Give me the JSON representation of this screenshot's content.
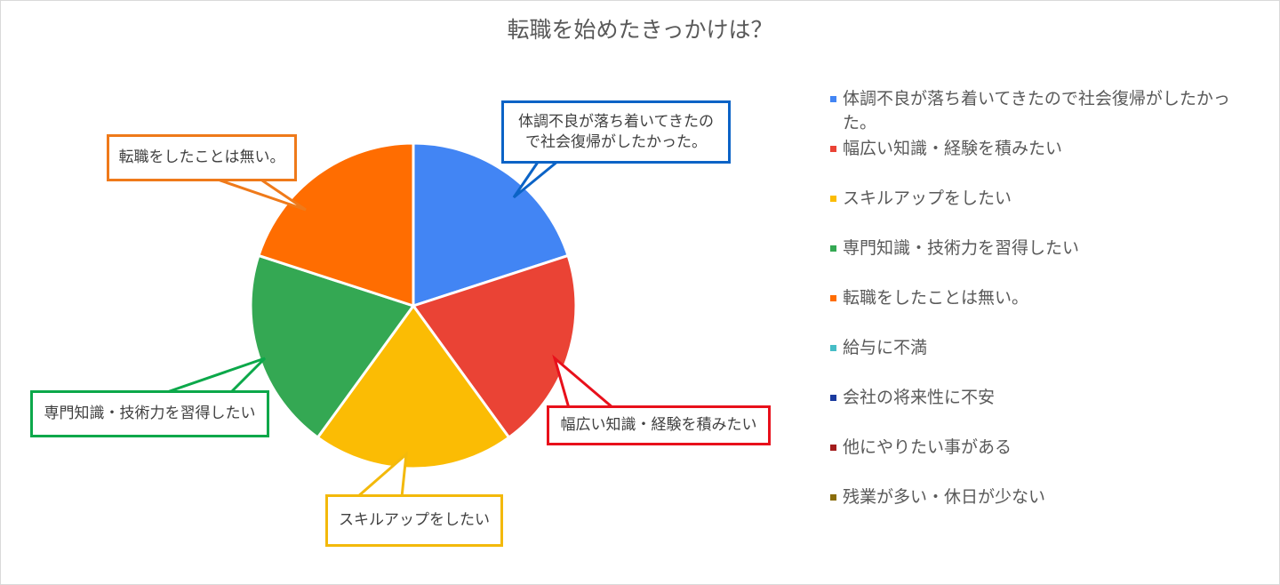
{
  "chart_data": {
    "type": "pie",
    "title": "転職を始めたきっかけは？",
    "categories": [
      "体調不良が落ち着いてきたので社会復帰がしたかった。",
      "幅広い知識・経験を積みたい",
      "スキルアップをしたい",
      "専門知識・技術力を習得したい",
      "転職をしたことは無い。",
      "給与に不満",
      "会社の将来性に不安",
      "他にやりたい事がある",
      "残業が多い・休日が少ない"
    ],
    "values": [
      1,
      1,
      1,
      1,
      1,
      0,
      0,
      0,
      0
    ],
    "colors": [
      "#4285f4",
      "#ea4335",
      "#fbbc04",
      "#34a853",
      "#ff6d01",
      "#46bdc6",
      "#1a3a9e",
      "#a31d1d",
      "#8a6d0b"
    ],
    "legend_position": "right",
    "callouts": [
      {
        "text": "体調不良が落ち着いてきたの\nで社会復帰がしたかった。",
        "border_color": "#0b63c6"
      },
      {
        "text": "幅広い知識・経験を積みたい",
        "border_color": "#e8101b"
      },
      {
        "text": "スキルアップをしたい",
        "border_color": "#f3b90b"
      },
      {
        "text": "専門知識・技術力を習得したい",
        "border_color": "#0ca84a"
      },
      {
        "text": "転職をしたことは無い。",
        "border_color": "#ef7a1a"
      }
    ]
  }
}
